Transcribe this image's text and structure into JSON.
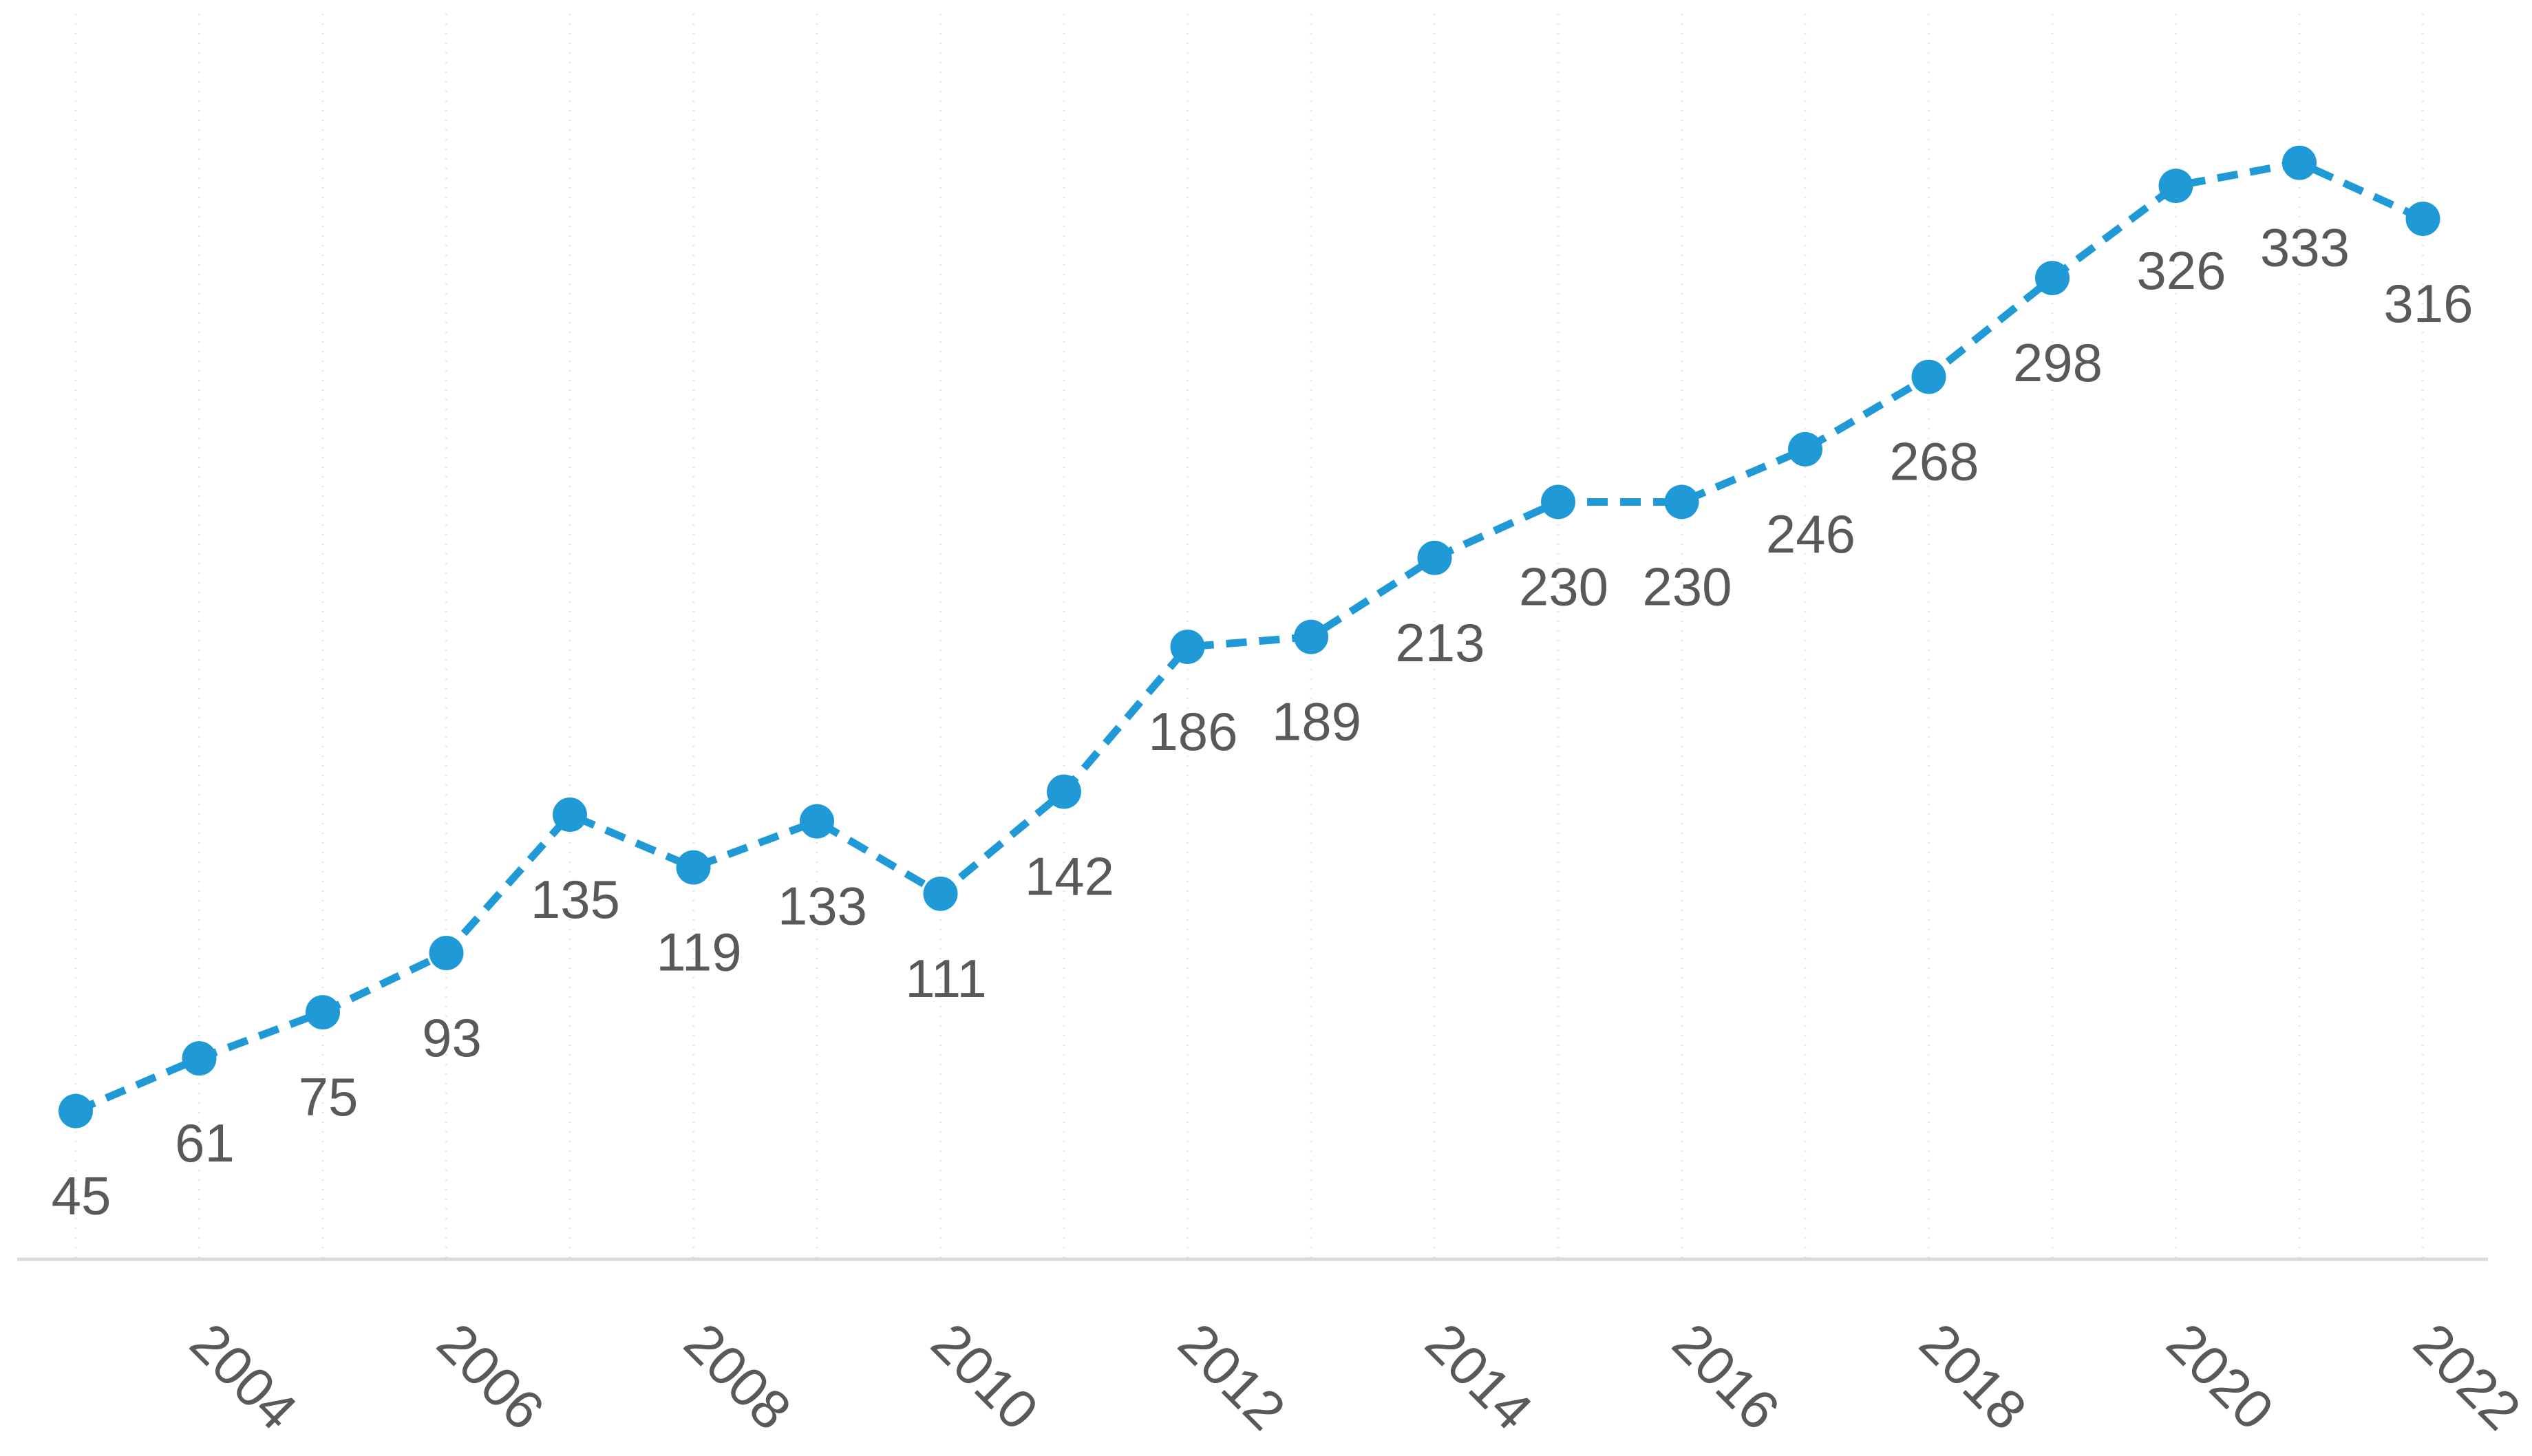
{
  "chart_data": {
    "type": "line",
    "x": [
      2003,
      2004,
      2005,
      2006,
      2007,
      2008,
      2009,
      2010,
      2011,
      2012,
      2013,
      2014,
      2015,
      2016,
      2017,
      2018,
      2019,
      2020,
      2021,
      2022
    ],
    "series": [
      {
        "values": [
          45,
          61,
          75,
          93,
          135,
          119,
          133,
          111,
          142,
          186,
          189,
          213,
          230,
          230,
          246,
          268,
          298,
          326,
          333,
          316
        ],
        "color": "#1f9ad6",
        "line_style": "dashed",
        "markers": "circle",
        "data_labels": true
      }
    ],
    "x_tick_labels": [
      "2004",
      "2006",
      "2008",
      "2010",
      "2012",
      "2014",
      "2016",
      "2018",
      "2020",
      "2022"
    ],
    "title": "",
    "xlabel": "",
    "ylabel": "",
    "ylim": [
      0,
      340
    ],
    "grid": "vertical-dotted",
    "legend": "none",
    "colors": {
      "axis": "#d9d9d9",
      "grid": "#e6e6e6",
      "text": "#595959"
    }
  }
}
